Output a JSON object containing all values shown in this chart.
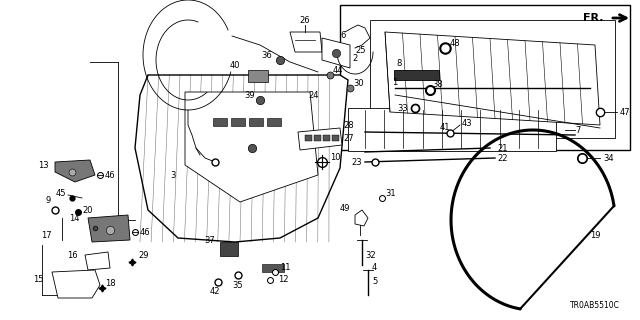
{
  "bg_color": "#ffffff",
  "line_color": "#000000",
  "diagram_code": "TR0AB5510C",
  "figsize": [
    6.4,
    3.2
  ],
  "dpi": 100
}
